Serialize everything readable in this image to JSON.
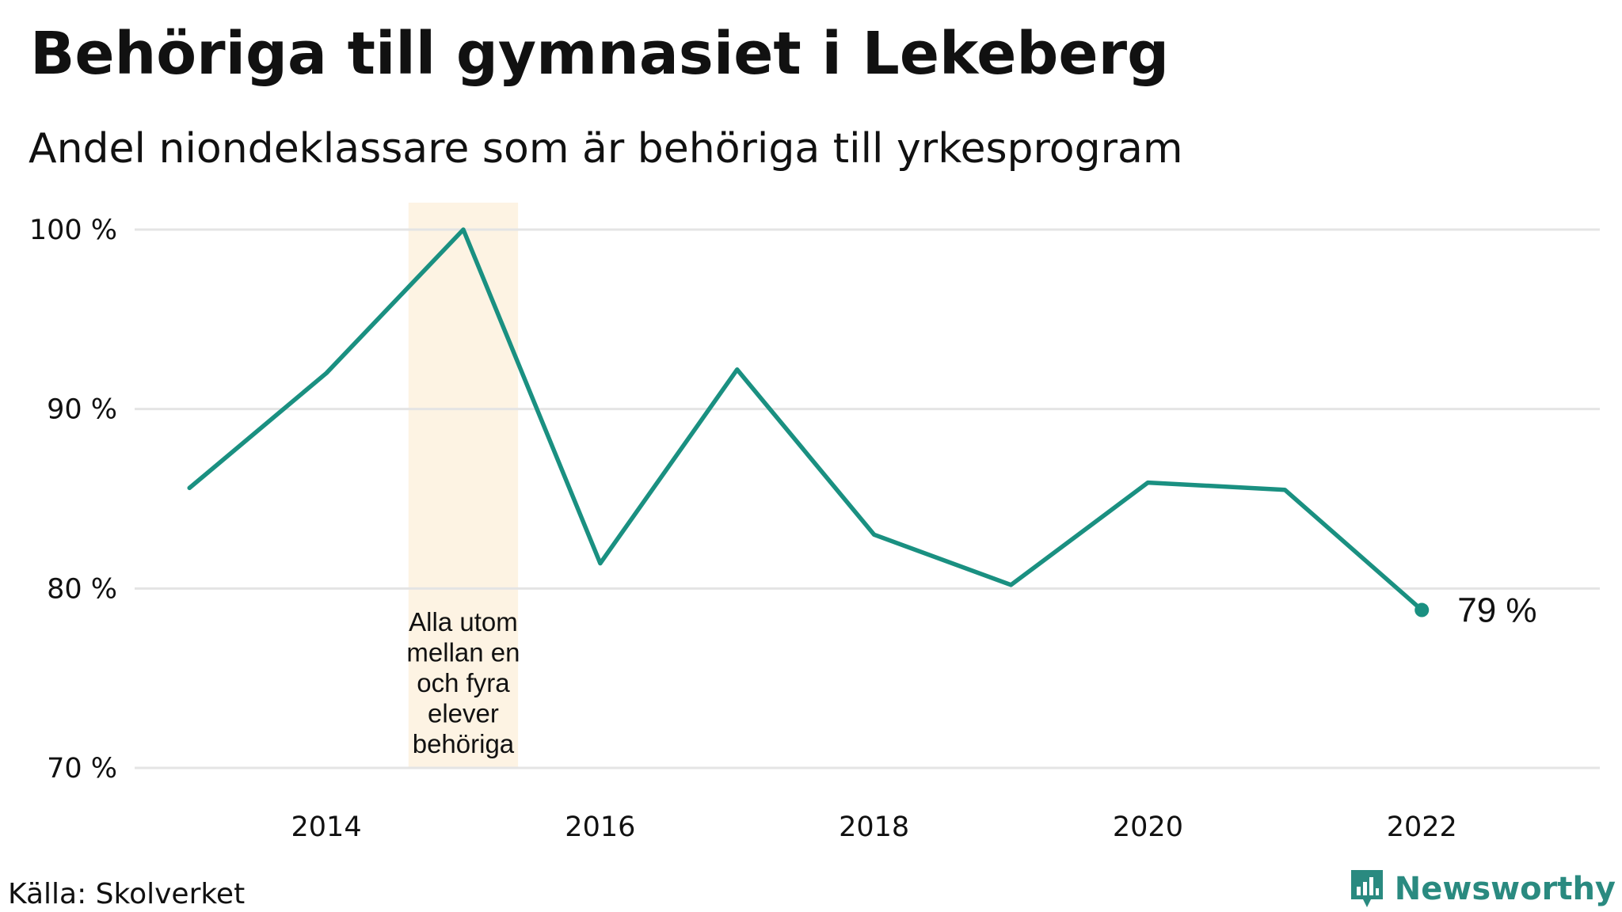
{
  "header": {
    "title": "Behöriga till gymnasiet i Lekeberg",
    "subtitle": "Andel niondeklassare som är behöriga till yrkesprogram"
  },
  "footer": {
    "source": "Källa: Skolverket",
    "brand": "Newsworthy"
  },
  "colors": {
    "line": "#1a9081",
    "highlight": "#fdf3e3",
    "grid": "#e4e4e4",
    "brand": "#2a8a80"
  },
  "icons": {
    "brand_logo": "bar-chart-icon"
  },
  "chart_data": {
    "type": "line",
    "title": "Behöriga till gymnasiet i Lekeberg",
    "subtitle": "Andel niondeklassare som är behöriga till yrkesprogram",
    "xlabel": "",
    "ylabel": "",
    "x": [
      2013,
      2014,
      2015,
      2016,
      2017,
      2018,
      2019,
      2020,
      2021,
      2022
    ],
    "series": [
      {
        "values": [
          85.6,
          92.0,
          100.0,
          81.4,
          92.2,
          83.0,
          80.2,
          85.9,
          85.5,
          78.8
        ]
      }
    ],
    "xlim": [
      2012.6,
      2023.3
    ],
    "ylim": [
      70,
      100
    ],
    "xticks": [
      2014,
      2016,
      2018,
      2020,
      2022
    ],
    "xtick_labels": [
      "2014",
      "2016",
      "2018",
      "2020",
      "2022"
    ],
    "yticks": [
      70,
      80,
      90,
      100
    ],
    "ytick_labels": [
      "70 %",
      "80 %",
      "90 %",
      "100 %"
    ],
    "grid": true,
    "highlight_range": [
      2014.6,
      2015.4
    ],
    "annotation": {
      "lines": [
        "Alla utom",
        "mellan en",
        "och fyra",
        "elever",
        "behöriga"
      ]
    },
    "end_label": "79  %"
  }
}
